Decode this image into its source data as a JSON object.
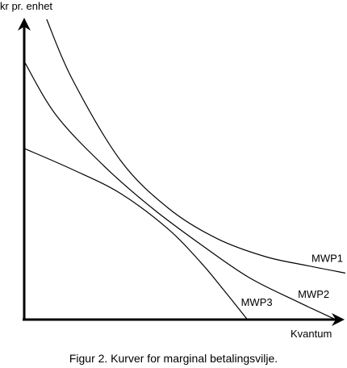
{
  "caption": "Figur 2.  Kurver for marginal betalingsvilje.",
  "chart_data": {
    "type": "line",
    "title": "",
    "ylabel": "kr pr. enhet",
    "xlabel": "Kvantum",
    "grid": false,
    "legend": "none",
    "xlim": [
      0,
      100
    ],
    "ylim": [
      0,
      100
    ],
    "series": [
      {
        "name": "MWP1",
        "x": [
          7,
          15,
          30,
          45,
          60,
          75,
          88,
          100
        ],
        "y": [
          100,
          80,
          53,
          37,
          27,
          21,
          18,
          15.5
        ]
      },
      {
        "name": "MWP2",
        "x": [
          0,
          10,
          25,
          40,
          55,
          70,
          85,
          97
        ],
        "y": [
          86,
          68,
          51,
          37,
          25,
          14,
          6,
          0
        ]
      },
      {
        "name": "MWP3",
        "x": [
          0,
          15,
          30,
          45,
          55,
          62,
          69.5
        ],
        "y": [
          57,
          50,
          42,
          30,
          19,
          10,
          0
        ]
      }
    ]
  }
}
